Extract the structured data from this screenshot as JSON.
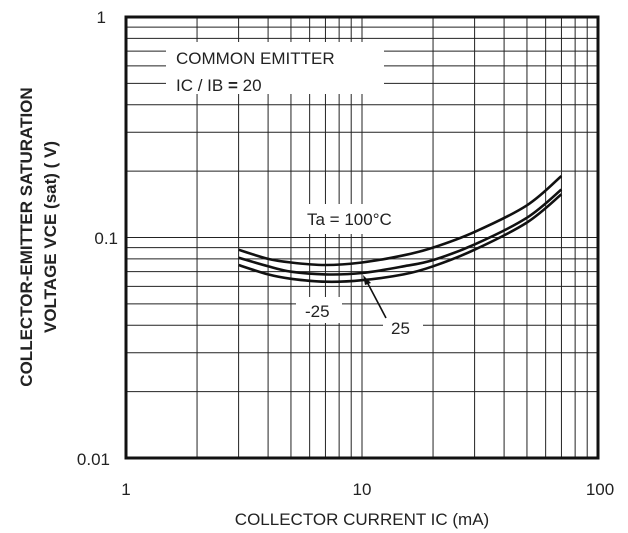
{
  "chart_data": {
    "type": "line",
    "x_scale": "log",
    "y_scale": "log",
    "xlim": [
      1,
      100
    ],
    "ylim": [
      0.01,
      1
    ],
    "x_ticks": [
      "1",
      "10",
      "100"
    ],
    "y_ticks": [
      "1",
      "0.1",
      "0.01"
    ],
    "xlabel": "COLLECTOR CURRENT  IC (mA)",
    "ylabel_line1": "COLLECTOR-EMITTER SATURATION",
    "ylabel_line2": "VOLTAGE  VCE (sat) ( V)",
    "grid": true,
    "legend_box": {
      "line1": "COMMON EMITTER",
      "line2_prefix": "IC / IB ",
      "line2_eq": "=",
      "line2_value": " 20"
    },
    "series": [
      {
        "name": "Ta = 100°C",
        "x": [
          3,
          4,
          5,
          7,
          10,
          15,
          20,
          30,
          50,
          70
        ],
        "y": [
          0.088,
          0.08,
          0.077,
          0.075,
          0.077,
          0.083,
          0.09,
          0.106,
          0.14,
          0.19
        ]
      },
      {
        "name": "25",
        "x": [
          3,
          4,
          5,
          7,
          10,
          15,
          20,
          30,
          50,
          70
        ],
        "y": [
          0.081,
          0.074,
          0.07,
          0.068,
          0.069,
          0.074,
          0.079,
          0.093,
          0.123,
          0.165
        ]
      },
      {
        "name": "-25",
        "x": [
          3,
          4,
          5,
          7,
          10,
          15,
          20,
          30,
          50,
          70
        ],
        "y": [
          0.075,
          0.068,
          0.065,
          0.063,
          0.064,
          0.068,
          0.074,
          0.088,
          0.117,
          0.157
        ]
      }
    ],
    "annotations": {
      "ta100": "Ta = 100°C",
      "t25": "25",
      "tm25": "-25"
    }
  }
}
